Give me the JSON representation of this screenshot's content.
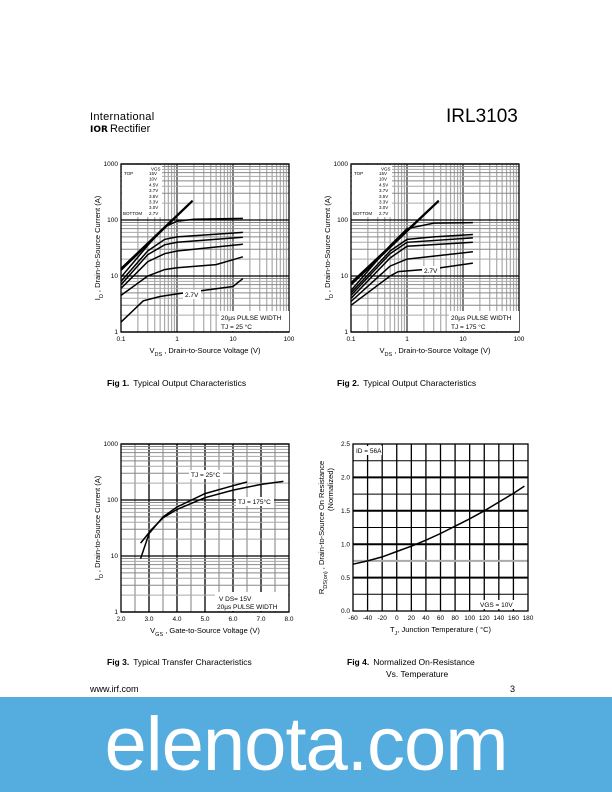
{
  "header": {
    "logo_line1": "International",
    "logo_mark": "IOR",
    "logo_line2": "Rectifier",
    "part_number": "IRL3103"
  },
  "footer": {
    "url": "www.irf.com",
    "page_number": "3"
  },
  "watermark": {
    "text": "elenota.com",
    "color": "#55acde"
  },
  "captions": [
    {
      "fig": "Fig 1.",
      "text": "Typical Output Characteristics"
    },
    {
      "fig": "Fig 2.",
      "text": "Typical Output Characteristics"
    },
    {
      "fig": "Fig 3.",
      "text": "Typical Transfer Characteristics"
    },
    {
      "fig": "Fig 4.",
      "text": "Normalized On-Resistance",
      "text2": "Vs. Temperature"
    }
  ],
  "chart_data": [
    {
      "type": "line",
      "xscale": "log",
      "yscale": "log",
      "xlim": [
        0.1,
        100
      ],
      "ylim": [
        1,
        1000
      ],
      "grid": true,
      "xticks": [
        "0.1",
        "1",
        "10",
        "100"
      ],
      "yticks": [
        "1",
        "10",
        "100",
        "1000"
      ],
      "xlabel": [
        {
          "t": "V"
        },
        {
          "t": "DS",
          "sub": true
        },
        {
          "t": " , Drain-to-Source Voltage (V)"
        }
      ],
      "ylabel": [
        {
          "t": "I"
        },
        {
          "t": "D",
          "sub": true
        },
        {
          "t": " ,  Drain-to-Source Current (A)"
        }
      ],
      "legend": {
        "header": "VGS",
        "top_label": "TOP",
        "bottom_label": "BOTTOM",
        "entries": [
          "15V",
          "10V",
          "4.5V",
          "3.7V",
          "3.5V",
          "3.3V",
          "3.0V",
          "2.7V"
        ],
        "placement": "top-left"
      },
      "annotations": [
        "20µs PULSE WIDTH",
        "TJ = 25 °C",
        "2.7V"
      ],
      "series": [
        {
          "name": "15V",
          "points": [
            [
              0.1,
              13.5
            ],
            [
              1.9,
              222
            ]
          ]
        },
        {
          "name": "10V",
          "points": [
            [
              0.1,
              12.8
            ],
            [
              1.85,
              215
            ]
          ]
        },
        {
          "name": "4.5V",
          "points": [
            [
              0.1,
              9.5
            ],
            [
              0.3,
              35
            ],
            [
              0.6,
              75
            ],
            [
              1,
              95
            ],
            [
              2,
              103
            ],
            [
              15,
              107
            ]
          ]
        },
        {
          "name": "3.7V",
          "points": [
            [
              0.1,
              8
            ],
            [
              0.3,
              28
            ],
            [
              0.6,
              45
            ],
            [
              1,
              50
            ],
            [
              15,
              60
            ]
          ]
        },
        {
          "name": "3.5V",
          "points": [
            [
              0.1,
              7
            ],
            [
              0.3,
              24
            ],
            [
              0.6,
              36
            ],
            [
              1,
              40
            ],
            [
              15,
              49
            ]
          ]
        },
        {
          "name": "3.3V",
          "points": [
            [
              0.1,
              6
            ],
            [
              0.3,
              18
            ],
            [
              0.6,
              25
            ],
            [
              1,
              28
            ],
            [
              15,
              37
            ]
          ]
        },
        {
          "name": "3.0V",
          "points": [
            [
              0.1,
              4.5
            ],
            [
              0.3,
              10
            ],
            [
              0.6,
              13
            ],
            [
              1,
              14
            ],
            [
              5,
              16
            ],
            [
              15,
              22
            ]
          ]
        },
        {
          "name": "2.7V",
          "points": [
            [
              0.1,
              1.5
            ],
            [
              0.25,
              3.6
            ],
            [
              0.5,
              4.3
            ],
            [
              1,
              4.8
            ],
            [
              10,
              6.5
            ],
            [
              15,
              9
            ]
          ]
        }
      ]
    },
    {
      "type": "line",
      "xscale": "log",
      "yscale": "log",
      "xlim": [
        0.1,
        100
      ],
      "ylim": [
        1,
        1000
      ],
      "grid": true,
      "xticks": [
        "0.1",
        "1",
        "10",
        "100"
      ],
      "yticks": [
        "1",
        "10",
        "100",
        "1000"
      ],
      "xlabel": [
        {
          "t": "V"
        },
        {
          "t": "DS",
          "sub": true
        },
        {
          "t": " , Drain-to-Source Voltage (V)"
        }
      ],
      "ylabel": [
        {
          "t": "I"
        },
        {
          "t": "D",
          "sub": true
        },
        {
          "t": " ,  Drain-to-Source Current (A)"
        }
      ],
      "legend": {
        "header": "VGS",
        "top_label": "TOP",
        "bottom_label": "BOTTOM",
        "entries": [
          "15V",
          "10V",
          "4.5V",
          "3.7V",
          "3.5V",
          "3.3V",
          "3.0V",
          "2.7V"
        ],
        "placement": "top-left"
      },
      "annotations": [
        "20µs PULSE WIDTH",
        "TJ = 175 °C",
        "2.7V"
      ],
      "series": [
        {
          "name": "15V",
          "points": [
            [
              0.1,
              7.5
            ],
            [
              3.7,
              222
            ]
          ]
        },
        {
          "name": "10V",
          "points": [
            [
              0.1,
              7
            ],
            [
              3.6,
              215
            ]
          ]
        },
        {
          "name": "4.5V",
          "points": [
            [
              0.1,
              5.5
            ],
            [
              0.5,
              35
            ],
            [
              1,
              70
            ],
            [
              3,
              88
            ],
            [
              15,
              90
            ]
          ]
        },
        {
          "name": "3.7V",
          "points": [
            [
              0.1,
              5
            ],
            [
              0.5,
              28
            ],
            [
              1,
              45
            ],
            [
              3,
              50
            ],
            [
              15,
              55
            ]
          ]
        },
        {
          "name": "3.5V",
          "points": [
            [
              0.1,
              4.5
            ],
            [
              0.5,
              25
            ],
            [
              1,
              40
            ],
            [
              15,
              48
            ]
          ]
        },
        {
          "name": "3.3V",
          "points": [
            [
              0.1,
              4
            ],
            [
              0.5,
              21
            ],
            [
              1,
              34
            ],
            [
              15,
              40
            ]
          ]
        },
        {
          "name": "3.0V",
          "points": [
            [
              0.1,
              3.5
            ],
            [
              0.5,
              15
            ],
            [
              1,
              20
            ],
            [
              15,
              27
            ]
          ]
        },
        {
          "name": "2.7V",
          "points": [
            [
              0.1,
              3
            ],
            [
              0.5,
              10
            ],
            [
              0.7,
              12
            ],
            [
              3,
              13.5
            ],
            [
              15,
              17
            ]
          ]
        }
      ]
    },
    {
      "type": "line",
      "xscale": "linear",
      "yscale": "log",
      "xlim": [
        2.0,
        8.0
      ],
      "ylim": [
        1,
        1000
      ],
      "grid": true,
      "xticks": [
        "2.0",
        "3.0",
        "4.0",
        "5.0",
        "6.0",
        "7.0",
        "8.0"
      ],
      "yticks": [
        "1",
        "10",
        "100",
        "1000"
      ],
      "xlabel": [
        {
          "t": "V"
        },
        {
          "t": "GS",
          "sub": true
        },
        {
          "t": " , Gate-to-Source Voltage (V)"
        }
      ],
      "ylabel": [
        {
          "t": "I"
        },
        {
          "t": "D",
          "sub": true
        },
        {
          "t": " ,  Drain-to-Source Current (A)"
        }
      ],
      "annotations": [
        "V DS= 15V",
        "20µs PULSE WIDTH"
      ],
      "series": [
        {
          "name": "TJ = 25°C",
          "points": [
            [
              2.7,
              9
            ],
            [
              3.0,
              25
            ],
            [
              3.5,
              50
            ],
            [
              4,
              75
            ],
            [
              5,
              130
            ],
            [
              6,
              180
            ],
            [
              6.5,
              210
            ]
          ]
        },
        {
          "name": "TJ = 175°C",
          "points": [
            [
              2.7,
              17
            ],
            [
              3.1,
              30
            ],
            [
              3.5,
              48
            ],
            [
              4,
              68
            ],
            [
              5,
              110
            ],
            [
              6,
              150
            ],
            [
              7,
              190
            ],
            [
              7.8,
              215
            ]
          ]
        }
      ]
    },
    {
      "type": "line",
      "xscale": "linear",
      "yscale": "linear",
      "xlim": [
        -60,
        180
      ],
      "ylim": [
        0,
        2.5
      ],
      "grid": true,
      "xticks": [
        "-60",
        "-40",
        "-20",
        "0",
        "20",
        "40",
        "60",
        "80",
        "100",
        "120",
        "140",
        "160",
        "180"
      ],
      "yticks": [
        "0.0",
        "0.5",
        "1.0",
        "1.5",
        "2.0",
        "2.5"
      ],
      "xlabel": [
        {
          "t": "T"
        },
        {
          "t": "J",
          "sub": true
        },
        {
          "t": ", Junction Temperature  ( °C)"
        }
      ],
      "ylabel": [
        {
          "t": "R"
        },
        {
          "t": "DS(on)",
          "sub": true
        },
        {
          "t": " ,  Drain-to-Source On Resistance"
        }
      ],
      "ylabel2": "(Normalized)",
      "annotations": [
        "ID = 56A",
        "VGS = 10V"
      ],
      "series": [
        {
          "points": [
            [
              -60,
              0.7
            ],
            [
              -40,
              0.75
            ],
            [
              -20,
              0.81
            ],
            [
              0,
              0.89
            ],
            [
              20,
              0.97
            ],
            [
              40,
              1.06
            ],
            [
              60,
              1.16
            ],
            [
              80,
              1.27
            ],
            [
              100,
              1.38
            ],
            [
              120,
              1.5
            ],
            [
              140,
              1.63
            ],
            [
              160,
              1.76
            ],
            [
              175,
              1.87
            ]
          ]
        }
      ]
    }
  ]
}
